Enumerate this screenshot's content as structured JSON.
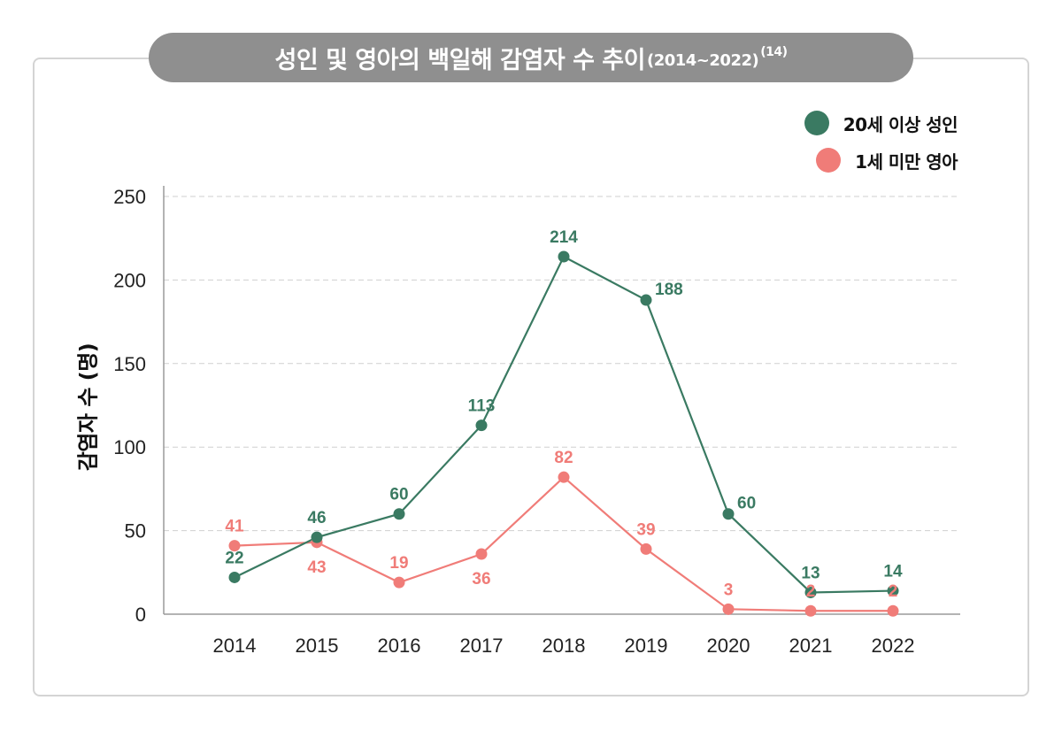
{
  "title": {
    "main": "성인 및 영아의 백일해 감염자 수 추이",
    "range": "(2014~2022)",
    "footnote": "(14)"
  },
  "legend": [
    {
      "label": "20세 이상 성인",
      "color": "#3a7a62"
    },
    {
      "label": "1세 미만 영아",
      "color": "#f07c78"
    }
  ],
  "chart_data": {
    "type": "line",
    "title": "성인 및 영아의 백일해 감염자 수 추이(2014~2022)(14)",
    "xlabel": "",
    "ylabel": "감염자 수 (명)",
    "ylim": [
      0,
      250
    ],
    "yticks": [
      "0",
      "50",
      "100",
      "150",
      "200",
      "250"
    ],
    "categories": [
      "2014",
      "2015",
      "2016",
      "2017",
      "2018",
      "2019",
      "2020",
      "2021",
      "2022"
    ],
    "grid": true,
    "legend_position": "top-right",
    "series": [
      {
        "name": "20세 이상 성인",
        "color": "#3a7a62",
        "values": [
          22,
          46,
          60,
          113,
          214,
          188,
          60,
          13,
          14
        ]
      },
      {
        "name": "1세 미만 영아",
        "color": "#f07c78",
        "values": [
          41,
          43,
          19,
          36,
          82,
          39,
          3,
          2,
          2
        ]
      }
    ]
  }
}
